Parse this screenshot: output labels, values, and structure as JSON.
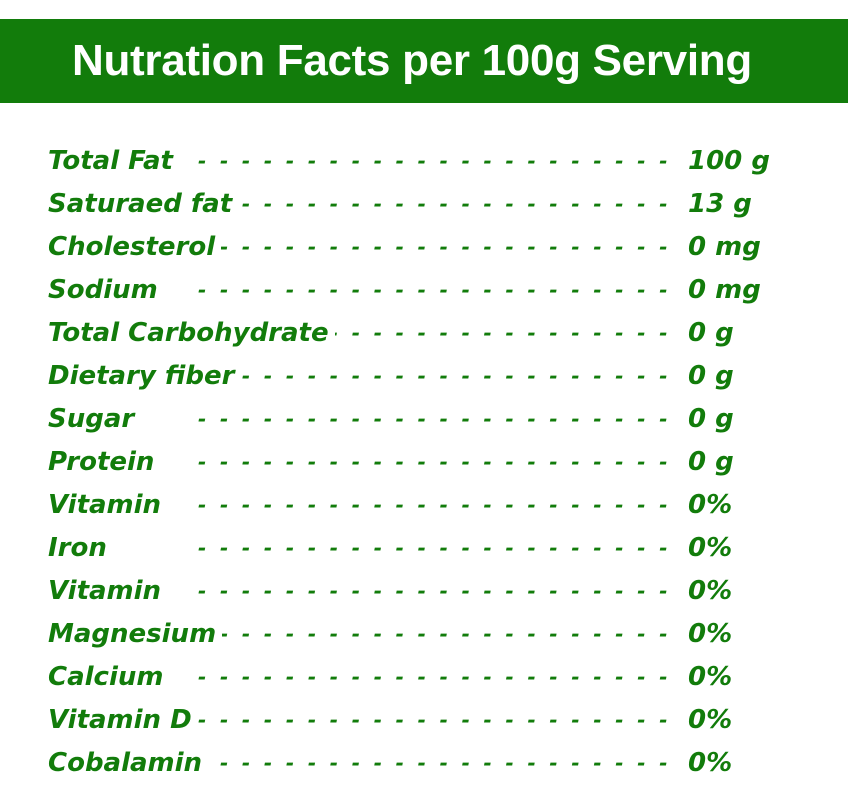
{
  "title": "Nutration Facts per 100g Serving",
  "colors": {
    "header_bg": "#127c0b",
    "header_text": "#ffffff",
    "row_text": "#127c0b"
  },
  "leader": "- - - - - - - - - - - - - - - - - - - - - - - - - - - - - - - - - - - - - - - - -",
  "facts": [
    {
      "label": "Total Fat",
      "value": "100 g"
    },
    {
      "label": "Saturaed fat",
      "value": "13 g"
    },
    {
      "label": "Cholesterol",
      "value": "0 mg"
    },
    {
      "label": "Sodium",
      "value": "0 mg"
    },
    {
      "label": "Total Carbohydrate",
      "value": "0 g"
    },
    {
      "label": "Dietary fiber",
      "value": "0 g"
    },
    {
      "label": "Sugar",
      "value": "0 g"
    },
    {
      "label": "Protein",
      "value": "0 g"
    },
    {
      "label": "Vitamin",
      "value": "0%"
    },
    {
      "label": "Iron",
      "value": "0%"
    },
    {
      "label": "Vitamin",
      "value": "0%"
    },
    {
      "label": "Magnesium",
      "value": "0%"
    },
    {
      "label": "Calcium",
      "value": "0%"
    },
    {
      "label": "Vitamin D",
      "value": "0%"
    },
    {
      "label": "Cobalamin",
      "value": "0%"
    }
  ]
}
